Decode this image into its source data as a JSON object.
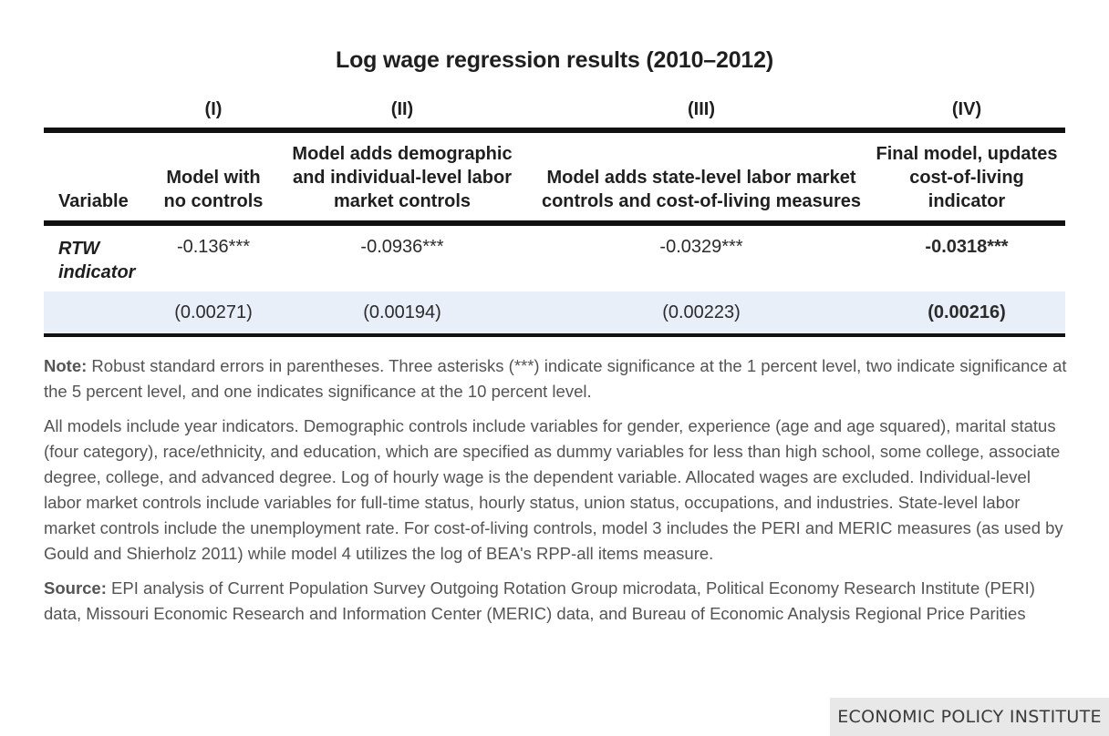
{
  "title": "Log wage regression results (2010–2012)",
  "table": {
    "roman_numerals": [
      "(I)",
      "(II)",
      "(III)",
      "(IV)"
    ],
    "variable_header": "Variable",
    "column_headers": [
      "Model with no controls",
      "Model adds demographic and individual-level labor market controls",
      "Model adds state-level labor market controls and cost-of-living measures",
      "Final model, updates cost-of-living indicator"
    ],
    "row_label": "RTW indicator",
    "coefficients": [
      "-0.136***",
      "-0.0936***",
      "-0.0329***",
      "-0.0318***"
    ],
    "standard_errors": [
      "(0.00271)",
      "(0.00194)",
      "(0.00223)",
      "(0.00216)"
    ]
  },
  "notes": {
    "note_label": "Note:",
    "note_text": " Robust standard errors in parentheses. Three asterisks (***) indicate significance at the 1 percent level, two indicate significance at the 5 percent level, and one indicates significance at the 10 percent level.",
    "models_text": "All models include year indicators. Demographic controls include variables for gender, experience (age and age squared), marital status (four category), race/ethnicity, and education, which are specified as dummy variables for less than high school, some college, associate degree, college, and advanced degree. Log of hourly wage is the dependent variable. Allocated wages are excluded. Individual-level labor market controls include variables for full-time status, hourly status, union status, occupations, and industries. State-level labor market controls include the unemployment rate. For cost-of-living controls, model 3 includes the PERI and MERIC measures (as used by Gould and Shierholz 2011) while model 4 utilizes the log of BEA's RPP-all items measure.",
    "source_label": "Source:",
    "source_text": " EPI analysis of Current Population Survey Outgoing Rotation Group microdata, Political Economy Research Institute (PERI) data, Missouri Economic Research and Information Center (MERIC) data, and Bureau of Economic Analysis Regional Price Parities"
  },
  "branding": "ECONOMIC POLICY INSTITUTE"
}
